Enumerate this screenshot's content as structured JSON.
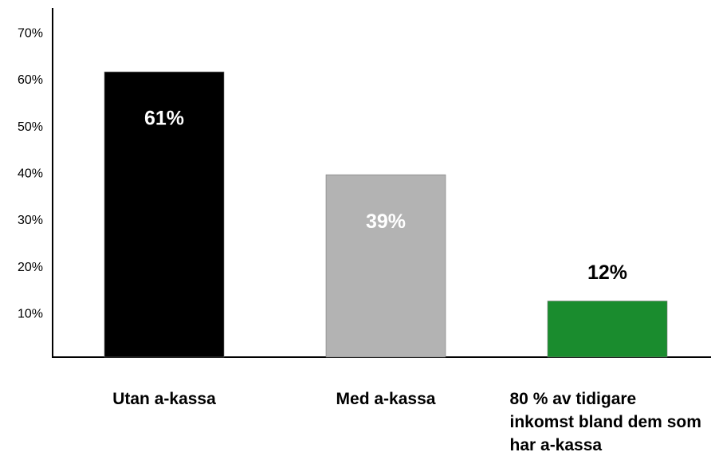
{
  "chart_data": {
    "type": "bar",
    "categories": [
      "Utan a-kassa",
      "Med a-kassa",
      "80 % av tidigare inkomst bland dem som har a-kassa"
    ],
    "values": [
      61,
      39,
      12
    ],
    "value_labels": [
      "61%",
      "39%",
      "12%"
    ],
    "colors": [
      "#000000",
      "#b3b3b3",
      "#1a8c2e"
    ],
    "ylim": [
      0,
      75
    ],
    "yticks": [
      {
        "value": 10,
        "label": "10%"
      },
      {
        "value": 20,
        "label": "20%"
      },
      {
        "value": 30,
        "label": "30%"
      },
      {
        "value": 40,
        "label": "40%"
      },
      {
        "value": 50,
        "label": "50%"
      },
      {
        "value": 60,
        "label": "60%"
      },
      {
        "value": 70,
        "label": "70%"
      }
    ],
    "grid": false
  }
}
